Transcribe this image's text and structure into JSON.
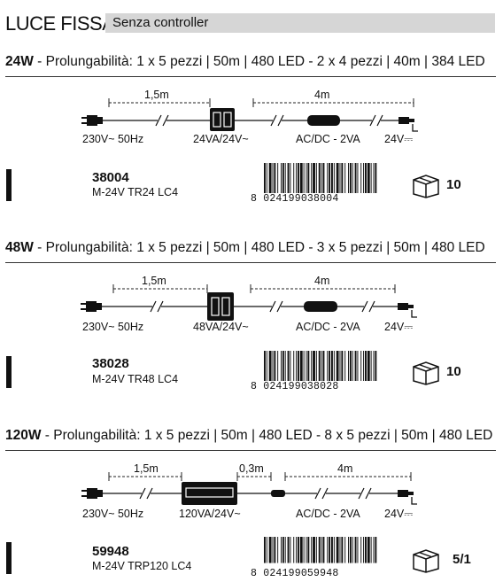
{
  "header": {
    "title": "LUCE FISSA",
    "badge": "Senza controller"
  },
  "sections": [
    {
      "power": "24W",
      "sep": " - ",
      "desc": "Prolungabilità: 1 x 5 pezzi | 50m | 480 LED - 2 x 4 pezzi | 40m | 384 LED",
      "dim1": "1,5m",
      "dim_mid": "",
      "dim2": "4m",
      "lbl_supply": "230V~ 50Hz",
      "lbl_transformer": "24VA/24V~",
      "lbl_acdc": "AC/DC - 2VA",
      "lbl_output": "24V⎓",
      "code": "38004",
      "model": "M-24V TR24 LC4",
      "barcode_first": "8",
      "barcode_left": "024199",
      "barcode_right": "038004",
      "qty": "10"
    },
    {
      "power": "48W",
      "sep": " - ",
      "desc": "Prolungabilità: 1 x 5 pezzi | 50m | 480 LED - 3 x 5 pezzi | 50m | 480 LED",
      "dim1": "1,5m",
      "dim_mid": "",
      "dim2": "4m",
      "lbl_supply": "230V~ 50Hz",
      "lbl_transformer": "48VA/24V~",
      "lbl_acdc": "AC/DC - 2VA",
      "lbl_output": "24V⎓",
      "code": "38028",
      "model": "M-24V TR48 LC4",
      "barcode_first": "8",
      "barcode_left": "024199",
      "barcode_right": "038028",
      "qty": "10"
    },
    {
      "power": "120W",
      "sep": " - ",
      "desc": "Prolungabilità: 1 x 5 pezzi | 50m | 480 LED - 8 x 5 pezzi | 50m | 480 LED",
      "dim1": "1,5m",
      "dim_mid": "0,3m",
      "dim2": "4m",
      "lbl_supply": "230V~ 50Hz",
      "lbl_transformer": "120VA/24V~",
      "lbl_acdc": "AC/DC - 2VA",
      "lbl_output": "24V⎓",
      "code": "59948",
      "model": "M-24V TRP120 LC4",
      "barcode_first": "8",
      "barcode_left": "024199",
      "barcode_right": "059948",
      "qty": "5/1"
    }
  ],
  "icons": {
    "marker": "black-bar-marker",
    "box": "package-box-icon",
    "plug": "power-plug-icon",
    "transformer": "transformer-icon",
    "acdc": "acdc-module-icon",
    "output": "output-connector-icon"
  }
}
